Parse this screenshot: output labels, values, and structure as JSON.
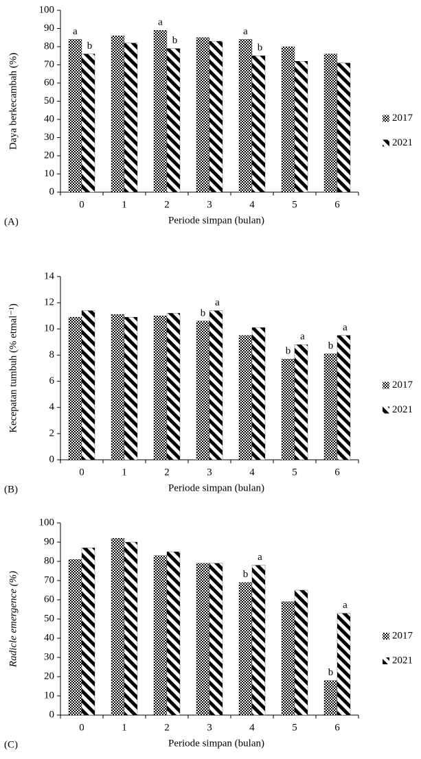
{
  "chart_data": [
    {
      "type": "bar",
      "panel_label": "(A)",
      "y_label": "Daya berkecambah (%)",
      "x_label": "Periode simpan (bulan)",
      "categories": [
        "0",
        "1",
        "2",
        "3",
        "4",
        "5",
        "6"
      ],
      "series": [
        {
          "name": "2017",
          "color": "#000000",
          "pattern": "checker",
          "values": [
            84,
            86,
            89,
            85,
            84,
            80,
            76
          ],
          "letters": [
            "a",
            null,
            "a",
            null,
            "a",
            null,
            null
          ]
        },
        {
          "name": "2021",
          "color": "#000000",
          "pattern": "diagonal",
          "values": [
            76,
            82,
            79,
            83,
            75,
            72,
            71
          ],
          "letters": [
            "b",
            null,
            "b",
            null,
            "b",
            null,
            null
          ]
        }
      ],
      "ylim": [
        0,
        100
      ],
      "yticks": [
        0,
        10,
        20,
        30,
        40,
        50,
        60,
        70,
        80,
        90,
        100
      ],
      "grid": false,
      "legend": "right"
    },
    {
      "type": "bar",
      "panel_label": "(B)",
      "y_label": "Kecepatan tumbuh (% etmal⁻¹)",
      "x_label": "Periode simpan (bulan)",
      "categories": [
        "0",
        "1",
        "2",
        "3",
        "4",
        "5",
        "6"
      ],
      "series": [
        {
          "name": "2017",
          "color": "#000000",
          "pattern": "checker",
          "values": [
            10.9,
            11.1,
            11.0,
            10.6,
            9.5,
            7.7,
            8.1
          ],
          "letters": [
            null,
            null,
            null,
            "b",
            null,
            "b",
            "b"
          ]
        },
        {
          "name": "2021",
          "color": "#000000",
          "pattern": "diagonal",
          "values": [
            11.4,
            10.9,
            11.2,
            11.4,
            10.1,
            8.8,
            9.5
          ],
          "letters": [
            null,
            null,
            null,
            "a",
            null,
            "a",
            "a"
          ]
        }
      ],
      "ylim": [
        0,
        14
      ],
      "yticks": [
        0,
        2,
        4,
        6,
        8,
        10,
        12,
        14
      ],
      "grid": false,
      "legend": "right"
    },
    {
      "type": "bar",
      "panel_label": "(C)",
      "y_label": "Radicle emergence (%)",
      "x_label": "Periode simpan (bulan)",
      "categories": [
        "0",
        "1",
        "2",
        "3",
        "4",
        "5",
        "6"
      ],
      "series": [
        {
          "name": "2017",
          "color": "#000000",
          "pattern": "checker",
          "values": [
            81,
            92,
            83,
            79,
            69,
            59,
            18
          ],
          "letters": [
            null,
            null,
            null,
            null,
            "b",
            null,
            "b"
          ]
        },
        {
          "name": "2021",
          "color": "#000000",
          "pattern": "diagonal",
          "values": [
            87,
            90,
            85,
            79,
            78,
            65,
            53
          ],
          "letters": [
            null,
            null,
            null,
            null,
            "a",
            null,
            "a"
          ]
        }
      ],
      "ylim": [
        0,
        100
      ],
      "yticks": [
        0,
        10,
        20,
        30,
        40,
        50,
        60,
        70,
        80,
        90,
        100
      ],
      "grid": false,
      "legend": "right"
    }
  ]
}
